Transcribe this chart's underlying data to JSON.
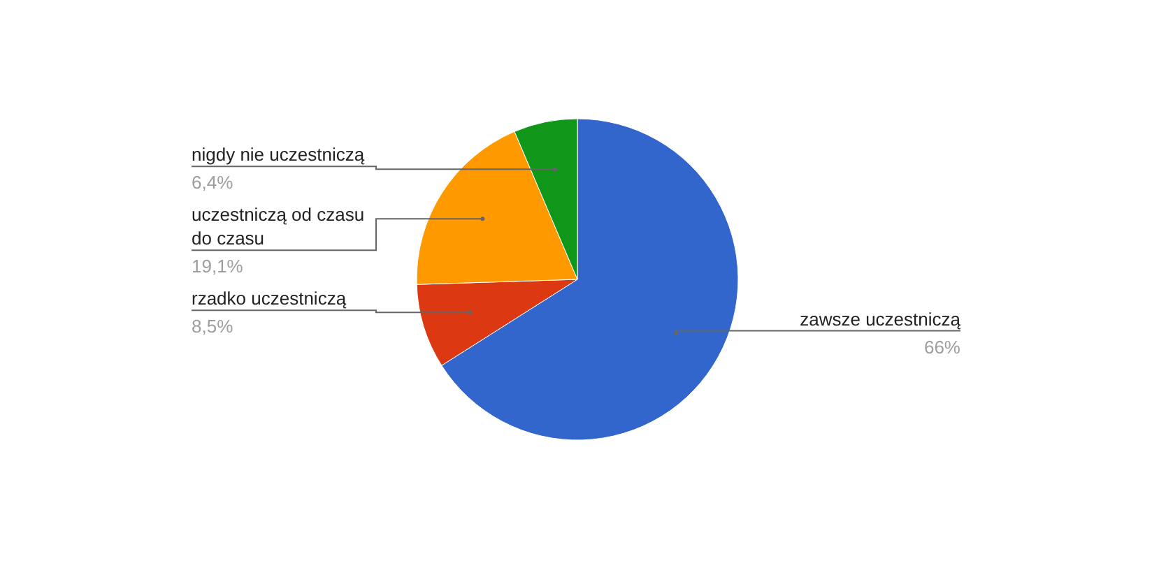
{
  "chart_data": {
    "type": "pie",
    "categories": [
      "zawsze uczestniczą",
      "rzadko uczestniczą",
      "uczestniczą od czasu do czasu",
      "nigdy nie uczestniczą"
    ],
    "values": [
      66,
      8.5,
      19.1,
      6.4
    ],
    "value_labels": [
      "66%",
      "8,5%",
      "19,1%",
      "6,4%"
    ],
    "colors": [
      "#3366cc",
      "#dc3912",
      "#ff9900",
      "#109618"
    ]
  }
}
